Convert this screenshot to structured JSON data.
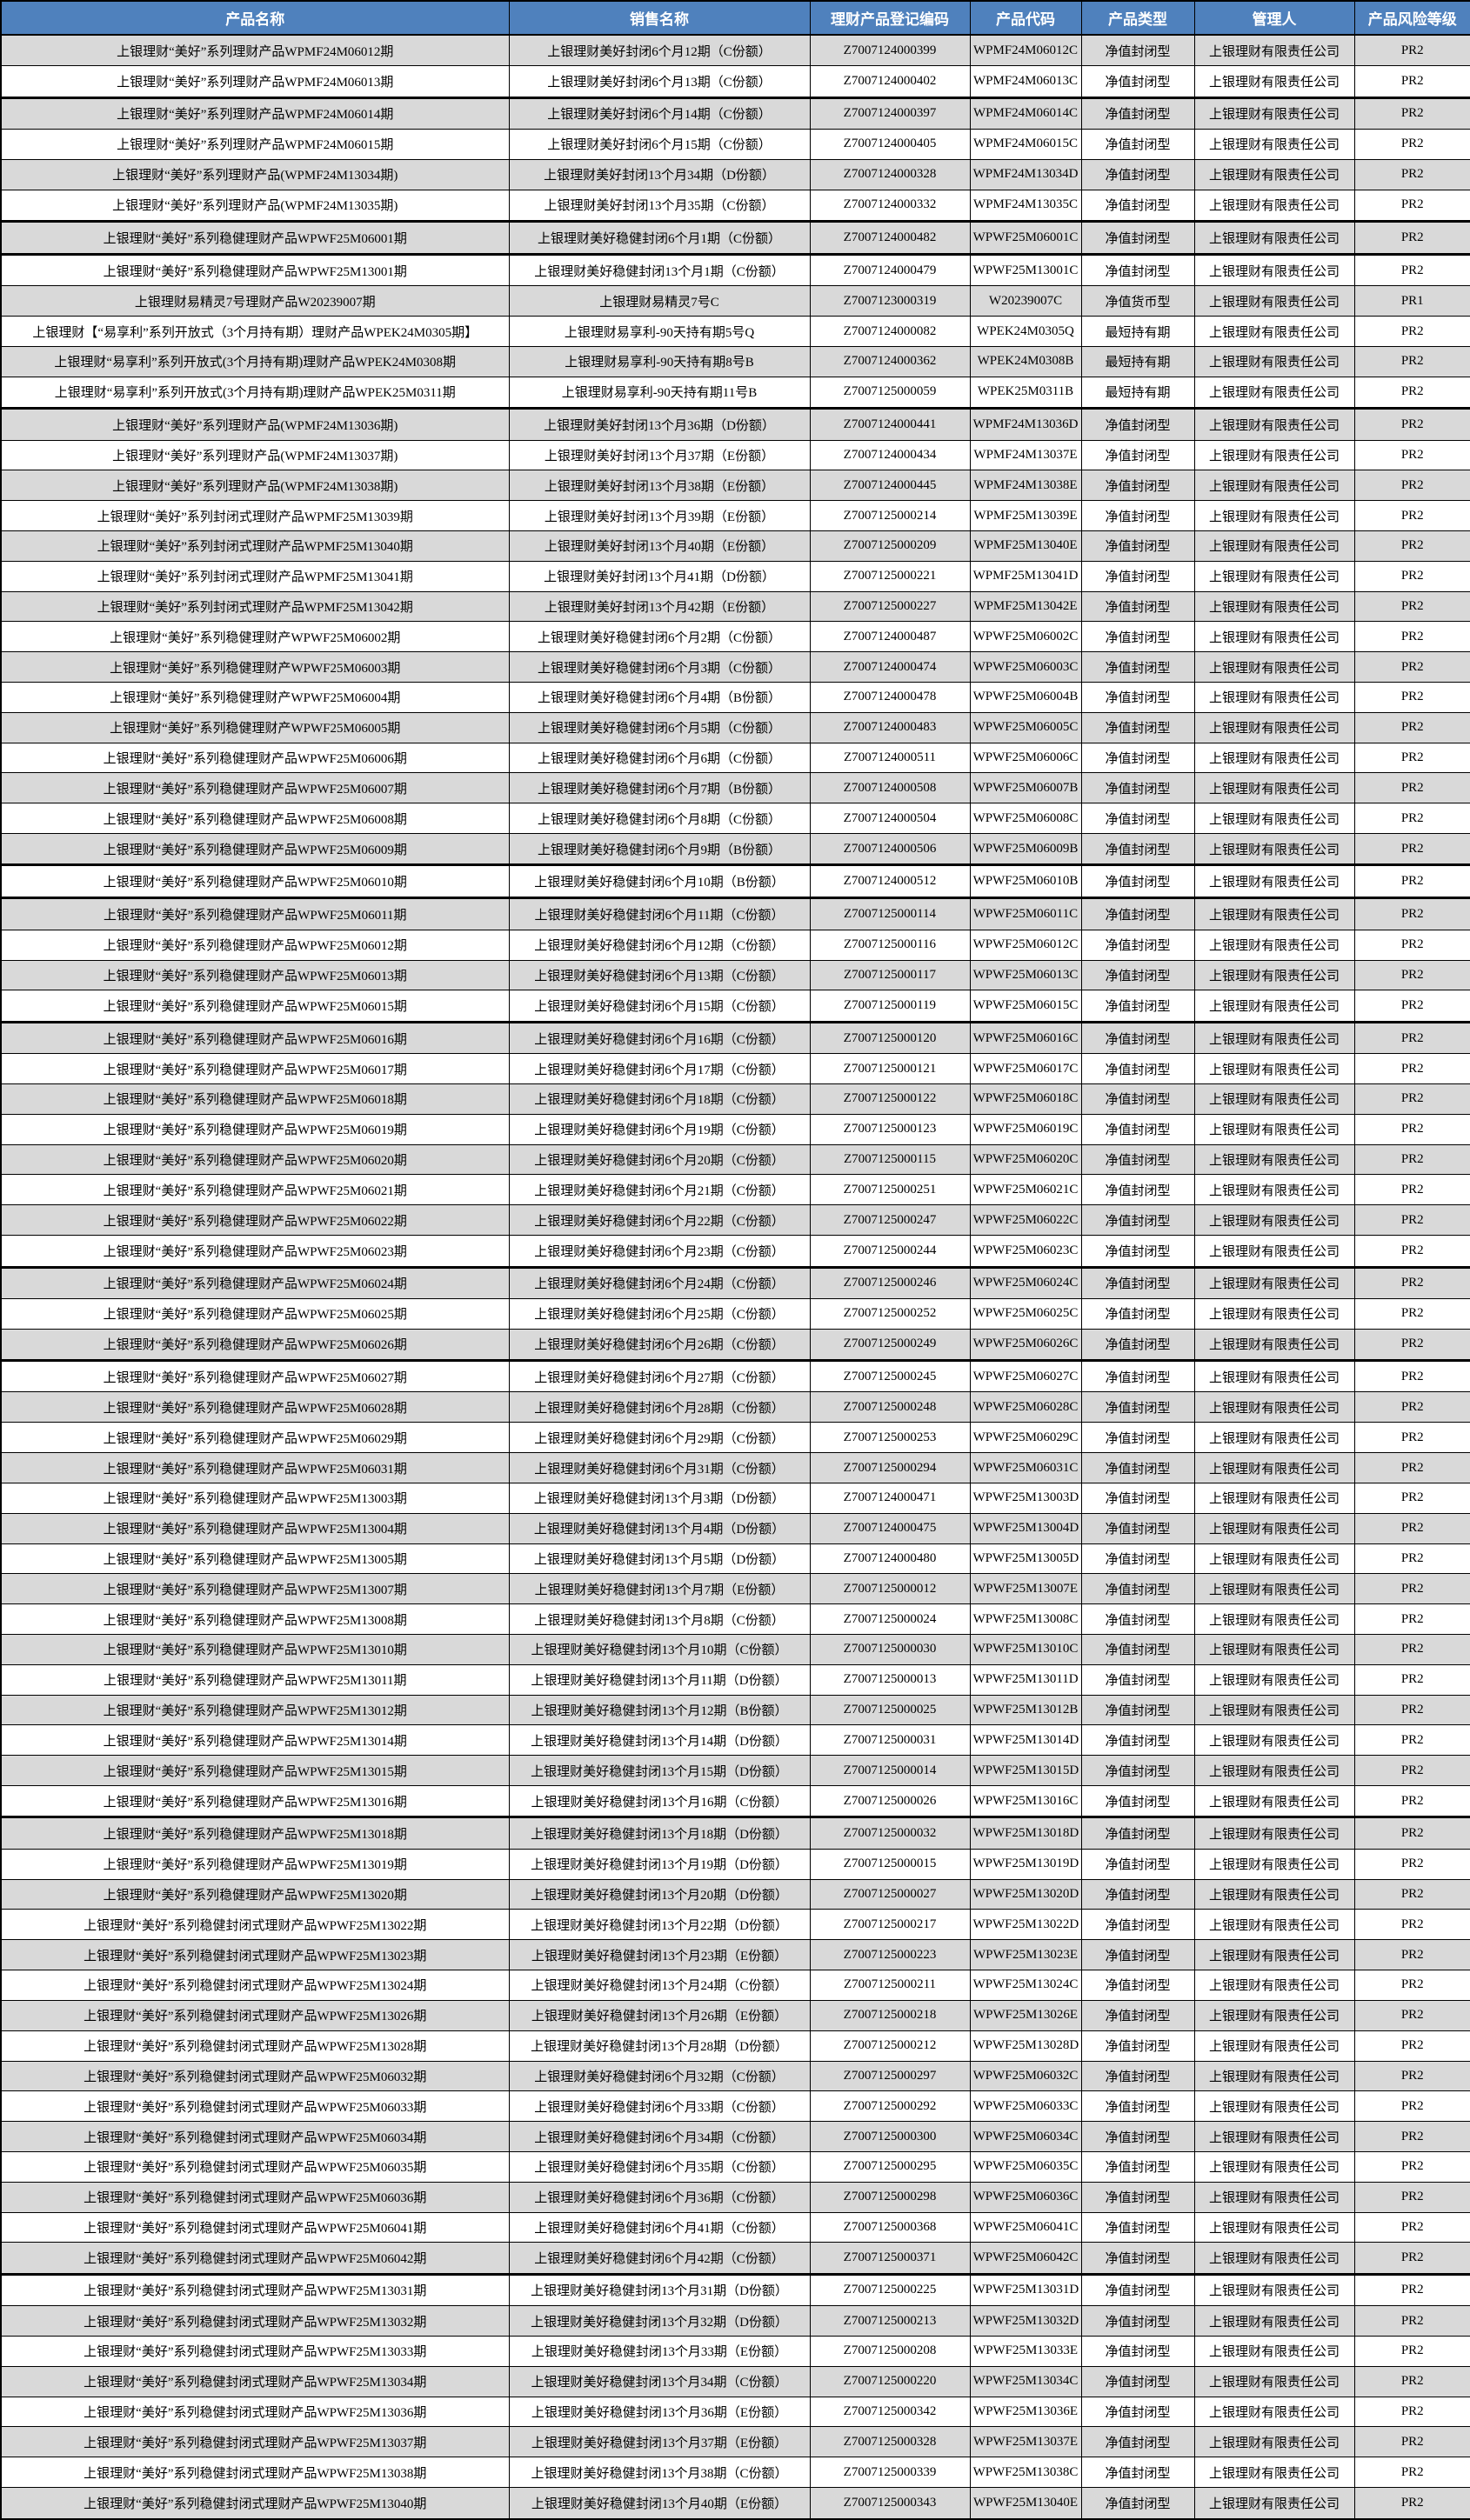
{
  "table": {
    "columns": [
      "产品名称",
      "销售名称",
      "理财产品登记编码",
      "产品代码",
      "产品类型",
      "管理人",
      "产品风险等级"
    ],
    "colors": {
      "header_bg": "#4F81BD",
      "header_text": "#FFFFFF",
      "row_alt_bg": "#D9D9D9",
      "row_bg": "#FFFFFF",
      "border": "#000000"
    },
    "thick_border_after_rows": [
      2,
      6,
      7,
      12,
      27,
      28,
      32,
      40,
      43,
      58,
      73
    ],
    "rows": [
      [
        "上银理财“美好”系列理财产品WPMF24M06012期",
        "上银理财美好封闭6个月12期（C份额）",
        "Z7007124000399",
        "WPMF24M06012C",
        "净值封闭型",
        "上银理财有限责任公司",
        "PR2"
      ],
      [
        "上银理财“美好”系列理财产品WPMF24M06013期",
        "上银理财美好封闭6个月13期（C份额）",
        "Z7007124000402",
        "WPMF24M06013C",
        "净值封闭型",
        "上银理财有限责任公司",
        "PR2"
      ],
      [
        "上银理财“美好”系列理财产品WPMF24M06014期",
        "上银理财美好封闭6个月14期（C份额）",
        "Z7007124000397",
        "WPMF24M06014C",
        "净值封闭型",
        "上银理财有限责任公司",
        "PR2"
      ],
      [
        "上银理财“美好”系列理财产品WPMF24M06015期",
        "上银理财美好封闭6个月15期（C份额）",
        "Z7007124000405",
        "WPMF24M06015C",
        "净值封闭型",
        "上银理财有限责任公司",
        "PR2"
      ],
      [
        "上银理财“美好”系列理财产品(WPMF24M13034期)",
        "上银理财美好封闭13个月34期（D份额）",
        "Z7007124000328",
        "WPMF24M13034D",
        "净值封闭型",
        "上银理财有限责任公司",
        "PR2"
      ],
      [
        "上银理财“美好”系列理财产品(WPMF24M13035期)",
        "上银理财美好封闭13个月35期（C份额）",
        "Z7007124000332",
        "WPMF24M13035C",
        "净值封闭型",
        "上银理财有限责任公司",
        "PR2"
      ],
      [
        "上银理财“美好”系列稳健理财产品WPWF25M06001期",
        "上银理财美好稳健封闭6个月1期（C份额）",
        "Z7007124000482",
        "WPWF25M06001C",
        "净值封闭型",
        "上银理财有限责任公司",
        "PR2"
      ],
      [
        "上银理财“美好”系列稳健理财产品WPWF25M13001期",
        "上银理财美好稳健封闭13个月1期（C份额）",
        "Z7007124000479",
        "WPWF25M13001C",
        "净值封闭型",
        "上银理财有限责任公司",
        "PR2"
      ],
      [
        "上银理财易精灵7号理财产品W20239007期",
        "上银理财易精灵7号C",
        "Z7007123000319",
        "W20239007C",
        "净值货币型",
        "上银理财有限责任公司",
        "PR1"
      ],
      [
        "上银理财【“易享利”系列开放式（3个月持有期）理财产品WPEK24M0305期】",
        "上银理财易享利-90天持有期5号Q",
        "Z7007124000082",
        "WPEK24M0305Q",
        "最短持有期",
        "上银理财有限责任公司",
        "PR2"
      ],
      [
        "上银理财“易享利”系列开放式(3个月持有期)理财产品WPEK24M0308期",
        "上银理财易享利-90天持有期8号B",
        "Z7007124000362",
        "WPEK24M0308B",
        "最短持有期",
        "上银理财有限责任公司",
        "PR2"
      ],
      [
        "上银理财“易享利”系列开放式(3个月持有期)理财产品WPEK25M0311期",
        "上银理财易享利-90天持有期11号B",
        "Z7007125000059",
        "WPEK25M0311B",
        "最短持有期",
        "上银理财有限责任公司",
        "PR2"
      ],
      [
        "上银理财“美好”系列理财产品(WPMF24M13036期)",
        "上银理财美好封闭13个月36期（D份额）",
        "Z7007124000441",
        "WPMF24M13036D",
        "净值封闭型",
        "上银理财有限责任公司",
        "PR2"
      ],
      [
        "上银理财“美好”系列理财产品(WPMF24M13037期)",
        "上银理财美好封闭13个月37期（E份额）",
        "Z7007124000434",
        "WPMF24M13037E",
        "净值封闭型",
        "上银理财有限责任公司",
        "PR2"
      ],
      [
        "上银理财“美好”系列理财产品(WPMF24M13038期)",
        "上银理财美好封闭13个月38期（E份额）",
        "Z7007124000445",
        "WPMF24M13038E",
        "净值封闭型",
        "上银理财有限责任公司",
        "PR2"
      ],
      [
        "上银理财“美好”系列封闭式理财产品WPMF25M13039期",
        "上银理财美好封闭13个月39期（E份额）",
        "Z7007125000214",
        "WPMF25M13039E",
        "净值封闭型",
        "上银理财有限责任公司",
        "PR2"
      ],
      [
        "上银理财“美好”系列封闭式理财产品WPMF25M13040期",
        "上银理财美好封闭13个月40期（E份额）",
        "Z7007125000209",
        "WPMF25M13040E",
        "净值封闭型",
        "上银理财有限责任公司",
        "PR2"
      ],
      [
        "上银理财“美好”系列封闭式理财产品WPMF25M13041期",
        "上银理财美好封闭13个月41期（D份额）",
        "Z7007125000221",
        "WPMF25M13041D",
        "净值封闭型",
        "上银理财有限责任公司",
        "PR2"
      ],
      [
        "上银理财“美好”系列封闭式理财产品WPMF25M13042期",
        "上银理财美好封闭13个月42期（E份额）",
        "Z7007125000227",
        "WPMF25M13042E",
        "净值封闭型",
        "上银理财有限责任公司",
        "PR2"
      ],
      [
        "上银理财“美好”系列稳健理财产WPWF25M06002期",
        "上银理财美好稳健封闭6个月2期（C份额）",
        "Z7007124000487",
        "WPWF25M06002C",
        "净值封闭型",
        "上银理财有限责任公司",
        "PR2"
      ],
      [
        "上银理财“美好”系列稳健理财产WPWF25M06003期",
        "上银理财美好稳健封闭6个月3期（C份额）",
        "Z7007124000474",
        "WPWF25M06003C",
        "净值封闭型",
        "上银理财有限责任公司",
        "PR2"
      ],
      [
        "上银理财“美好”系列稳健理财产WPWF25M06004期",
        "上银理财美好稳健封闭6个月4期（B份额）",
        "Z7007124000478",
        "WPWF25M06004B",
        "净值封闭型",
        "上银理财有限责任公司",
        "PR2"
      ],
      [
        "上银理财“美好”系列稳健理财产WPWF25M06005期",
        "上银理财美好稳健封闭6个月5期（C份额）",
        "Z7007124000483",
        "WPWF25M06005C",
        "净值封闭型",
        "上银理财有限责任公司",
        "PR2"
      ],
      [
        "上银理财“美好”系列稳健理财产品WPWF25M06006期",
        "上银理财美好稳健封闭6个月6期（C份额）",
        "Z7007124000511",
        "WPWF25M06006C",
        "净值封闭型",
        "上银理财有限责任公司",
        "PR2"
      ],
      [
        "上银理财“美好”系列稳健理财产品WPWF25M06007期",
        "上银理财美好稳健封闭6个月7期（B份额）",
        "Z7007124000508",
        "WPWF25M06007B",
        "净值封闭型",
        "上银理财有限责任公司",
        "PR2"
      ],
      [
        "上银理财“美好”系列稳健理财产品WPWF25M06008期",
        "上银理财美好稳健封闭6个月8期（C份额）",
        "Z7007124000504",
        "WPWF25M06008C",
        "净值封闭型",
        "上银理财有限责任公司",
        "PR2"
      ],
      [
        "上银理财“美好”系列稳健理财产品WPWF25M06009期",
        "上银理财美好稳健封闭6个月9期（B份额）",
        "Z7007124000506",
        "WPWF25M06009B",
        "净值封闭型",
        "上银理财有限责任公司",
        "PR2"
      ],
      [
        "上银理财“美好”系列稳健理财产品WPWF25M06010期",
        "上银理财美好稳健封闭6个月10期（B份额）",
        "Z7007124000512",
        "WPWF25M06010B",
        "净值封闭型",
        "上银理财有限责任公司",
        "PR2"
      ],
      [
        "上银理财“美好”系列稳健理财产品WPWF25M06011期",
        "上银理财美好稳健封闭6个月11期（C份额）",
        "Z7007125000114",
        "WPWF25M06011C",
        "净值封闭型",
        "上银理财有限责任公司",
        "PR2"
      ],
      [
        "上银理财“美好”系列稳健理财产品WPWF25M06012期",
        "上银理财美好稳健封闭6个月12期（C份额）",
        "Z7007125000116",
        "WPWF25M06012C",
        "净值封闭型",
        "上银理财有限责任公司",
        "PR2"
      ],
      [
        "上银理财“美好”系列稳健理财产品WPWF25M06013期",
        "上银理财美好稳健封闭6个月13期（C份额）",
        "Z7007125000117",
        "WPWF25M06013C",
        "净值封闭型",
        "上银理财有限责任公司",
        "PR2"
      ],
      [
        "上银理财“美好”系列稳健理财产品WPWF25M06015期",
        "上银理财美好稳健封闭6个月15期（C份额）",
        "Z7007125000119",
        "WPWF25M06015C",
        "净值封闭型",
        "上银理财有限责任公司",
        "PR2"
      ],
      [
        "上银理财“美好”系列稳健理财产品WPWF25M06016期",
        "上银理财美好稳健封闭6个月16期（C份额）",
        "Z7007125000120",
        "WPWF25M06016C",
        "净值封闭型",
        "上银理财有限责任公司",
        "PR2"
      ],
      [
        "上银理财“美好”系列稳健理财产品WPWF25M06017期",
        "上银理财美好稳健封闭6个月17期（C份额）",
        "Z7007125000121",
        "WPWF25M06017C",
        "净值封闭型",
        "上银理财有限责任公司",
        "PR2"
      ],
      [
        "上银理财“美好”系列稳健理财产品WPWF25M06018期",
        "上银理财美好稳健封闭6个月18期（C份额）",
        "Z7007125000122",
        "WPWF25M06018C",
        "净值封闭型",
        "上银理财有限责任公司",
        "PR2"
      ],
      [
        "上银理财“美好”系列稳健理财产品WPWF25M06019期",
        "上银理财美好稳健封闭6个月19期（C份额）",
        "Z7007125000123",
        "WPWF25M06019C",
        "净值封闭型",
        "上银理财有限责任公司",
        "PR2"
      ],
      [
        "上银理财“美好”系列稳健理财产品WPWF25M06020期",
        "上银理财美好稳健封闭6个月20期（C份额）",
        "Z7007125000115",
        "WPWF25M06020C",
        "净值封闭型",
        "上银理财有限责任公司",
        "PR2"
      ],
      [
        "上银理财“美好”系列稳健理财产品WPWF25M06021期",
        "上银理财美好稳健封闭6个月21期（C份额）",
        "Z7007125000251",
        "WPWF25M06021C",
        "净值封闭型",
        "上银理财有限责任公司",
        "PR2"
      ],
      [
        "上银理财“美好”系列稳健理财产品WPWF25M06022期",
        "上银理财美好稳健封闭6个月22期（C份额）",
        "Z7007125000247",
        "WPWF25M06022C",
        "净值封闭型",
        "上银理财有限责任公司",
        "PR2"
      ],
      [
        "上银理财“美好”系列稳健理财产品WPWF25M06023期",
        "上银理财美好稳健封闭6个月23期（C份额）",
        "Z7007125000244",
        "WPWF25M06023C",
        "净值封闭型",
        "上银理财有限责任公司",
        "PR2"
      ],
      [
        "上银理财“美好”系列稳健理财产品WPWF25M06024期",
        "上银理财美好稳健封闭6个月24期（C份额）",
        "Z7007125000246",
        "WPWF25M06024C",
        "净值封闭型",
        "上银理财有限责任公司",
        "PR2"
      ],
      [
        "上银理财“美好”系列稳健理财产品WPWF25M06025期",
        "上银理财美好稳健封闭6个月25期（C份额）",
        "Z7007125000252",
        "WPWF25M06025C",
        "净值封闭型",
        "上银理财有限责任公司",
        "PR2"
      ],
      [
        "上银理财“美好”系列稳健理财产品WPWF25M06026期",
        "上银理财美好稳健封闭6个月26期（C份额）",
        "Z7007125000249",
        "WPWF25M06026C",
        "净值封闭型",
        "上银理财有限责任公司",
        "PR2"
      ],
      [
        "上银理财“美好”系列稳健理财产品WPWF25M06027期",
        "上银理财美好稳健封闭6个月27期（C份额）",
        "Z7007125000245",
        "WPWF25M06027C",
        "净值封闭型",
        "上银理财有限责任公司",
        "PR2"
      ],
      [
        "上银理财“美好”系列稳健理财产品WPWF25M06028期",
        "上银理财美好稳健封闭6个月28期（C份额）",
        "Z7007125000248",
        "WPWF25M06028C",
        "净值封闭型",
        "上银理财有限责任公司",
        "PR2"
      ],
      [
        "上银理财“美好”系列稳健理财产品WPWF25M06029期",
        "上银理财美好稳健封闭6个月29期（C份额）",
        "Z7007125000253",
        "WPWF25M06029C",
        "净值封闭型",
        "上银理财有限责任公司",
        "PR2"
      ],
      [
        "上银理财“美好”系列稳健理财产品WPWF25M06031期",
        "上银理财美好稳健封闭6个月31期（C份额）",
        "Z7007125000294",
        "WPWF25M06031C",
        "净值封闭型",
        "上银理财有限责任公司",
        "PR2"
      ],
      [
        "上银理财“美好”系列稳健理财产品WPWF25M13003期",
        "上银理财美好稳健封闭13个月3期（D份额）",
        "Z7007124000471",
        "WPWF25M13003D",
        "净值封闭型",
        "上银理财有限责任公司",
        "PR2"
      ],
      [
        "上银理财“美好”系列稳健理财产品WPWF25M13004期",
        "上银理财美好稳健封闭13个月4期（D份额）",
        "Z7007124000475",
        "WPWF25M13004D",
        "净值封闭型",
        "上银理财有限责任公司",
        "PR2"
      ],
      [
        "上银理财“美好”系列稳健理财产品WPWF25M13005期",
        "上银理财美好稳健封闭13个月5期（D份额）",
        "Z7007124000480",
        "WPWF25M13005D",
        "净值封闭型",
        "上银理财有限责任公司",
        "PR2"
      ],
      [
        "上银理财“美好”系列稳健理财产品WPWF25M13007期",
        "上银理财美好稳健封闭13个月7期（E份额）",
        "Z7007125000012",
        "WPWF25M13007E",
        "净值封闭型",
        "上银理财有限责任公司",
        "PR2"
      ],
      [
        "上银理财“美好”系列稳健理财产品WPWF25M13008期",
        "上银理财美好稳健封闭13个月8期（C份额）",
        "Z7007125000024",
        "WPWF25M13008C",
        "净值封闭型",
        "上银理财有限责任公司",
        "PR2"
      ],
      [
        "上银理财“美好”系列稳健理财产品WPWF25M13010期",
        "上银理财美好稳健封闭13个月10期（C份额）",
        "Z7007125000030",
        "WPWF25M13010C",
        "净值封闭型",
        "上银理财有限责任公司",
        "PR2"
      ],
      [
        "上银理财“美好”系列稳健理财产品WPWF25M13011期",
        "上银理财美好稳健封闭13个月11期（D份额）",
        "Z7007125000013",
        "WPWF25M13011D",
        "净值封闭型",
        "上银理财有限责任公司",
        "PR2"
      ],
      [
        "上银理财“美好”系列稳健理财产品WPWF25M13012期",
        "上银理财美好稳健封闭13个月12期（B份额）",
        "Z7007125000025",
        "WPWF25M13012B",
        "净值封闭型",
        "上银理财有限责任公司",
        "PR2"
      ],
      [
        "上银理财“美好”系列稳健理财产品WPWF25M13014期",
        "上银理财美好稳健封闭13个月14期（D份额）",
        "Z7007125000031",
        "WPWF25M13014D",
        "净值封闭型",
        "上银理财有限责任公司",
        "PR2"
      ],
      [
        "上银理财“美好”系列稳健理财产品WPWF25M13015期",
        "上银理财美好稳健封闭13个月15期（D份额）",
        "Z7007125000014",
        "WPWF25M13015D",
        "净值封闭型",
        "上银理财有限责任公司",
        "PR2"
      ],
      [
        "上银理财“美好”系列稳健理财产品WPWF25M13016期",
        "上银理财美好稳健封闭13个月16期（C份额）",
        "Z7007125000026",
        "WPWF25M13016C",
        "净值封闭型",
        "上银理财有限责任公司",
        "PR2"
      ],
      [
        "上银理财“美好”系列稳健理财产品WPWF25M13018期",
        "上银理财美好稳健封闭13个月18期（D份额）",
        "Z7007125000032",
        "WPWF25M13018D",
        "净值封闭型",
        "上银理财有限责任公司",
        "PR2"
      ],
      [
        "上银理财“美好”系列稳健理财产品WPWF25M13019期",
        "上银理财美好稳健封闭13个月19期（D份额）",
        "Z7007125000015",
        "WPWF25M13019D",
        "净值封闭型",
        "上银理财有限责任公司",
        "PR2"
      ],
      [
        "上银理财“美好”系列稳健理财产品WPWF25M13020期",
        "上银理财美好稳健封闭13个月20期（D份额）",
        "Z7007125000027",
        "WPWF25M13020D",
        "净值封闭型",
        "上银理财有限责任公司",
        "PR2"
      ],
      [
        "上银理财“美好”系列稳健封闭式理财产品WPWF25M13022期",
        "上银理财美好稳健封闭13个月22期（D份额）",
        "Z7007125000217",
        "WPWF25M13022D",
        "净值封闭型",
        "上银理财有限责任公司",
        "PR2"
      ],
      [
        "上银理财“美好”系列稳健封闭式理财产品WPWF25M13023期",
        "上银理财美好稳健封闭13个月23期（E份额）",
        "Z7007125000223",
        "WPWF25M13023E",
        "净值封闭型",
        "上银理财有限责任公司",
        "PR2"
      ],
      [
        "上银理财“美好”系列稳健封闭式理财产品WPWF25M13024期",
        "上银理财美好稳健封闭13个月24期（C份额）",
        "Z7007125000211",
        "WPWF25M13024C",
        "净值封闭型",
        "上银理财有限责任公司",
        "PR2"
      ],
      [
        "上银理财“美好”系列稳健封闭式理财产品WPWF25M13026期",
        "上银理财美好稳健封闭13个月26期（E份额）",
        "Z7007125000218",
        "WPWF25M13026E",
        "净值封闭型",
        "上银理财有限责任公司",
        "PR2"
      ],
      [
        "上银理财“美好”系列稳健封闭式理财产品WPWF25M13028期",
        "上银理财美好稳健封闭13个月28期（D份额）",
        "Z7007125000212",
        "WPWF25M13028D",
        "净值封闭型",
        "上银理财有限责任公司",
        "PR2"
      ],
      [
        "上银理财“美好”系列稳健封闭式理财产品WPWF25M06032期",
        "上银理财美好稳健封闭6个月32期（C份额）",
        "Z7007125000297",
        "WPWF25M06032C",
        "净值封闭型",
        "上银理财有限责任公司",
        "PR2"
      ],
      [
        "上银理财“美好”系列稳健封闭式理财产品WPWF25M06033期",
        "上银理财美好稳健封闭6个月33期（C份额）",
        "Z7007125000292",
        "WPWF25M06033C",
        "净值封闭型",
        "上银理财有限责任公司",
        "PR2"
      ],
      [
        "上银理财“美好”系列稳健封闭式理财产品WPWF25M06034期",
        "上银理财美好稳健封闭6个月34期（C份额）",
        "Z7007125000300",
        "WPWF25M06034C",
        "净值封闭型",
        "上银理财有限责任公司",
        "PR2"
      ],
      [
        "上银理财“美好”系列稳健封闭式理财产品WPWF25M06035期",
        "上银理财美好稳健封闭6个月35期（C份额）",
        "Z7007125000295",
        "WPWF25M06035C",
        "净值封闭型",
        "上银理财有限责任公司",
        "PR2"
      ],
      [
        "上银理财“美好”系列稳健封闭式理财产品WPWF25M06036期",
        "上银理财美好稳健封闭6个月36期（C份额）",
        "Z7007125000298",
        "WPWF25M06036C",
        "净值封闭型",
        "上银理财有限责任公司",
        "PR2"
      ],
      [
        "上银理财“美好”系列稳健封闭式理财产品WPWF25M06041期",
        "上银理财美好稳健封闭6个月41期（C份额）",
        "Z7007125000368",
        "WPWF25M06041C",
        "净值封闭型",
        "上银理财有限责任公司",
        "PR2"
      ],
      [
        "上银理财“美好”系列稳健封闭式理财产品WPWF25M06042期",
        "上银理财美好稳健封闭6个月42期（C份额）",
        "Z7007125000371",
        "WPWF25M06042C",
        "净值封闭型",
        "上银理财有限责任公司",
        "PR2"
      ],
      [
        "上银理财“美好”系列稳健封闭式理财产品WPWF25M13031期",
        "上银理财美好稳健封闭13个月31期（D份额）",
        "Z7007125000225",
        "WPWF25M13031D",
        "净值封闭型",
        "上银理财有限责任公司",
        "PR2"
      ],
      [
        "上银理财“美好”系列稳健封闭式理财产品WPWF25M13032期",
        "上银理财美好稳健封闭13个月32期（D份额）",
        "Z7007125000213",
        "WPWF25M13032D",
        "净值封闭型",
        "上银理财有限责任公司",
        "PR2"
      ],
      [
        "上银理财“美好”系列稳健封闭式理财产品WPWF25M13033期",
        "上银理财美好稳健封闭13个月33期（E份额）",
        "Z7007125000208",
        "WPWF25M13033E",
        "净值封闭型",
        "上银理财有限责任公司",
        "PR2"
      ],
      [
        "上银理财“美好”系列稳健封闭式理财产品WPWF25M13034期",
        "上银理财美好稳健封闭13个月34期（C份额）",
        "Z7007125000220",
        "WPWF25M13034C",
        "净值封闭型",
        "上银理财有限责任公司",
        "PR2"
      ],
      [
        "上银理财“美好”系列稳健封闭式理财产品WPWF25M13036期",
        "上银理财美好稳健封闭13个月36期（E份额）",
        "Z7007125000342",
        "WPWF25M13036E",
        "净值封闭型",
        "上银理财有限责任公司",
        "PR2"
      ],
      [
        "上银理财“美好”系列稳健封闭式理财产品WPWF25M13037期",
        "上银理财美好稳健封闭13个月37期（E份额）",
        "Z7007125000328",
        "WPWF25M13037E",
        "净值封闭型",
        "上银理财有限责任公司",
        "PR2"
      ],
      [
        "上银理财“美好”系列稳健封闭式理财产品WPWF25M13038期",
        "上银理财美好稳健封闭13个月38期（C份额）",
        "Z7007125000339",
        "WPWF25M13038C",
        "净值封闭型",
        "上银理财有限责任公司",
        "PR2"
      ],
      [
        "上银理财“美好”系列稳健封闭式理财产品WPWF25M13040期",
        "上银理财美好稳健封闭13个月40期（E份额）",
        "Z7007125000343",
        "WPWF25M13040E",
        "净值封闭型",
        "上银理财有限责任公司",
        "PR2"
      ]
    ]
  }
}
